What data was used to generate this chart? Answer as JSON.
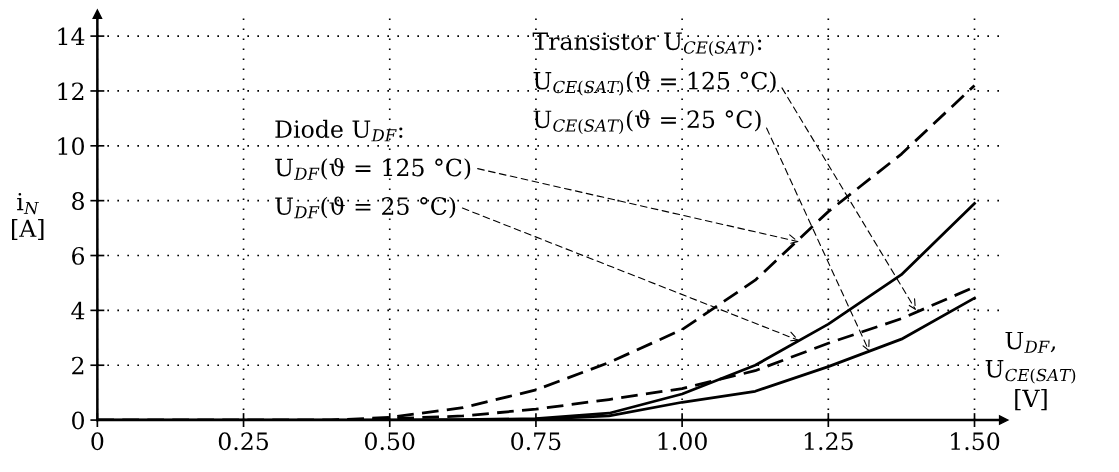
{
  "chart_data": {
    "type": "line",
    "xlabel": "U$_{DF}$,\nU$_{CE(SAT)}$\n[V]",
    "ylabel": "i$_{N}$\n[A]",
    "x": [
      0,
      0.25,
      0.4,
      0.5,
      0.625,
      0.75,
      0.875,
      1.0,
      1.125,
      1.25,
      1.375,
      1.5
    ],
    "series": [
      {
        "color": "#000000",
        "line_style": "dashed",
        "values": [
          0,
          0,
          0,
          0.1,
          0.45,
          1.1,
          2.1,
          3.3,
          5.1,
          7.6,
          9.7,
          12.2
        ]
      },
      {
        "color": "#000000",
        "line_style": "dashed",
        "values": [
          0,
          0,
          0,
          0.05,
          0.15,
          0.4,
          0.75,
          1.15,
          1.8,
          2.8,
          3.7,
          4.85
        ]
      },
      {
        "color": "#000000",
        "line_style": "solid",
        "values": [
          0,
          0,
          0,
          0,
          0.02,
          0.05,
          0.25,
          0.95,
          2.0,
          3.5,
          5.3,
          7.9
        ]
      },
      {
        "color": "#000000",
        "line_style": "solid",
        "values": [
          0,
          0,
          0,
          0,
          0.01,
          0.03,
          0.15,
          0.65,
          1.05,
          1.95,
          2.95,
          4.45
        ]
      }
    ],
    "xlim": [
      0,
      1.55
    ],
    "ylim": [
      0,
      14.8
    ],
    "xticks": [
      0,
      0.25,
      {
        "value": 0.5,
        "label": "0.50"
      },
      0.75,
      {
        "value": 1.0,
        "label": "1.00"
      },
      1.25,
      {
        "value": 1.5,
        "label": "1.50"
      }
    ],
    "yticks": [
      0,
      2,
      4,
      6,
      8,
      10,
      12,
      14
    ],
    "grid": true,
    "marker": "none",
    "annotations": [
      "Diode U$_{DF}$:",
      {
        "text": "U$_{DF}$(ϑ = 125 °C)",
        "x": 1.2,
        "y": 6.5
      },
      {
        "text": "U$_{DF}$(ϑ = 25 °C)",
        "x": 1.2,
        "y": 2.9
      },
      "Transistor U$_{CE(SAT)}$:",
      {
        "text": "U$_{CE(SAT)}$(ϑ = 125 °C)",
        "x": 1.4,
        "y": 4.0
      },
      {
        "text": "U$_{CE(SAT)}$(ϑ = 25 °C)",
        "x": 1.32,
        "y": 2.5
      }
    ]
  }
}
